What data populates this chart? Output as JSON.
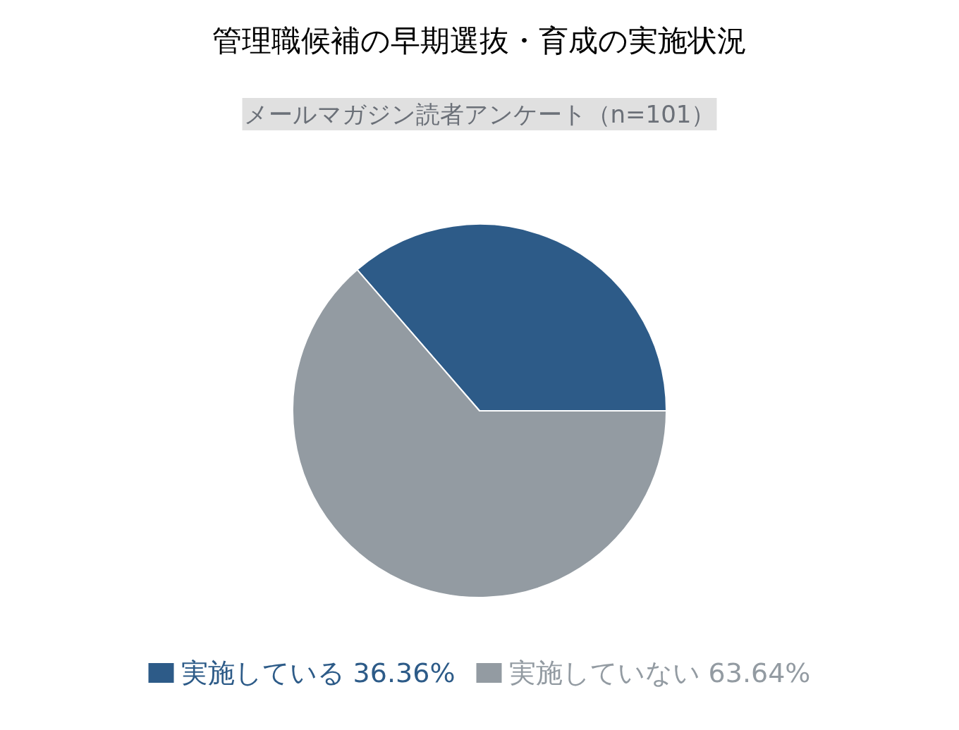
{
  "chart_data": {
    "type": "pie",
    "title": "管理職候補の早期選抜・育成の実施状況",
    "subtitle": "メールマガジン読者アンケート（n=101）",
    "categories": [
      "実施している",
      "実施していない"
    ],
    "values": [
      36.36,
      63.64
    ],
    "value_labels": [
      "36.36%",
      "63.64%"
    ],
    "colors": [
      "#2d5b88",
      "#939ba2"
    ],
    "legend": "bottom"
  }
}
